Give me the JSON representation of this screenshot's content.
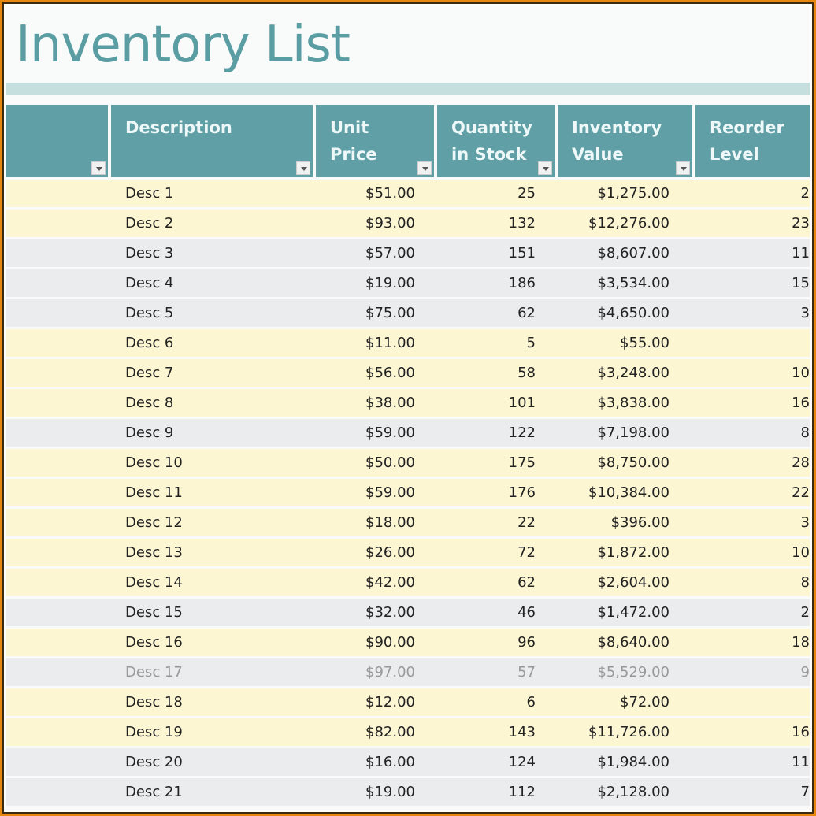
{
  "title": "Inventory List",
  "columns": [
    "",
    "Description",
    "Unit Price",
    "Quantity in Stock",
    "Inventory Value",
    "Reorder Level"
  ],
  "header_lines": {
    "qty": [
      "Quantity",
      "in Stock"
    ],
    "inv": [
      "Inventory",
      "Value"
    ],
    "reorder": [
      "Reorder",
      "Level"
    ]
  },
  "colors": {
    "header": "#5f9fa5",
    "title": "#5a9ea3",
    "row_yellow": "#fdf6d3",
    "row_gray": "#eaecee",
    "frame": "#e8870f"
  },
  "rows": [
    {
      "desc": "Desc 1",
      "price": "$51.00",
      "qty": "25",
      "value": "$1,275.00",
      "reorder": "2",
      "shade": "y"
    },
    {
      "desc": "Desc 2",
      "price": "$93.00",
      "qty": "132",
      "value": "$12,276.00",
      "reorder": "23",
      "shade": "y"
    },
    {
      "desc": "Desc 3",
      "price": "$57.00",
      "qty": "151",
      "value": "$8,607.00",
      "reorder": "11",
      "shade": "g"
    },
    {
      "desc": "Desc 4",
      "price": "$19.00",
      "qty": "186",
      "value": "$3,534.00",
      "reorder": "15",
      "shade": "g"
    },
    {
      "desc": "Desc 5",
      "price": "$75.00",
      "qty": "62",
      "value": "$4,650.00",
      "reorder": "3",
      "shade": "g"
    },
    {
      "desc": "Desc 6",
      "price": "$11.00",
      "qty": "5",
      "value": "$55.00",
      "reorder": "",
      "shade": "y"
    },
    {
      "desc": "Desc 7",
      "price": "$56.00",
      "qty": "58",
      "value": "$3,248.00",
      "reorder": "10",
      "shade": "y"
    },
    {
      "desc": "Desc 8",
      "price": "$38.00",
      "qty": "101",
      "value": "$3,838.00",
      "reorder": "16",
      "shade": "y"
    },
    {
      "desc": "Desc 9",
      "price": "$59.00",
      "qty": "122",
      "value": "$7,198.00",
      "reorder": "8",
      "shade": "g"
    },
    {
      "desc": "Desc 10",
      "price": "$50.00",
      "qty": "175",
      "value": "$8,750.00",
      "reorder": "28",
      "shade": "y"
    },
    {
      "desc": "Desc 11",
      "price": "$59.00",
      "qty": "176",
      "value": "$10,384.00",
      "reorder": "22",
      "shade": "y"
    },
    {
      "desc": "Desc 12",
      "price": "$18.00",
      "qty": "22",
      "value": "$396.00",
      "reorder": "3",
      "shade": "y"
    },
    {
      "desc": "Desc 13",
      "price": "$26.00",
      "qty": "72",
      "value": "$1,872.00",
      "reorder": "10",
      "shade": "y"
    },
    {
      "desc": "Desc 14",
      "price": "$42.00",
      "qty": "62",
      "value": "$2,604.00",
      "reorder": "8",
      "shade": "y"
    },
    {
      "desc": "Desc 15",
      "price": "$32.00",
      "qty": "46",
      "value": "$1,472.00",
      "reorder": "2",
      "shade": "g"
    },
    {
      "desc": "Desc 16",
      "price": "$90.00",
      "qty": "96",
      "value": "$8,640.00",
      "reorder": "18",
      "shade": "y"
    },
    {
      "desc": "Desc 17",
      "price": "$97.00",
      "qty": "57",
      "value": "$5,529.00",
      "reorder": "9",
      "shade": "g",
      "discontinued": true
    },
    {
      "desc": "Desc 18",
      "price": "$12.00",
      "qty": "6",
      "value": "$72.00",
      "reorder": "",
      "shade": "y"
    },
    {
      "desc": "Desc 19",
      "price": "$82.00",
      "qty": "143",
      "value": "$11,726.00",
      "reorder": "16",
      "shade": "y"
    },
    {
      "desc": "Desc 20",
      "price": "$16.00",
      "qty": "124",
      "value": "$1,984.00",
      "reorder": "11",
      "shade": "g"
    },
    {
      "desc": "Desc 21",
      "price": "$19.00",
      "qty": "112",
      "value": "$2,128.00",
      "reorder": "7",
      "shade": "g"
    }
  ]
}
